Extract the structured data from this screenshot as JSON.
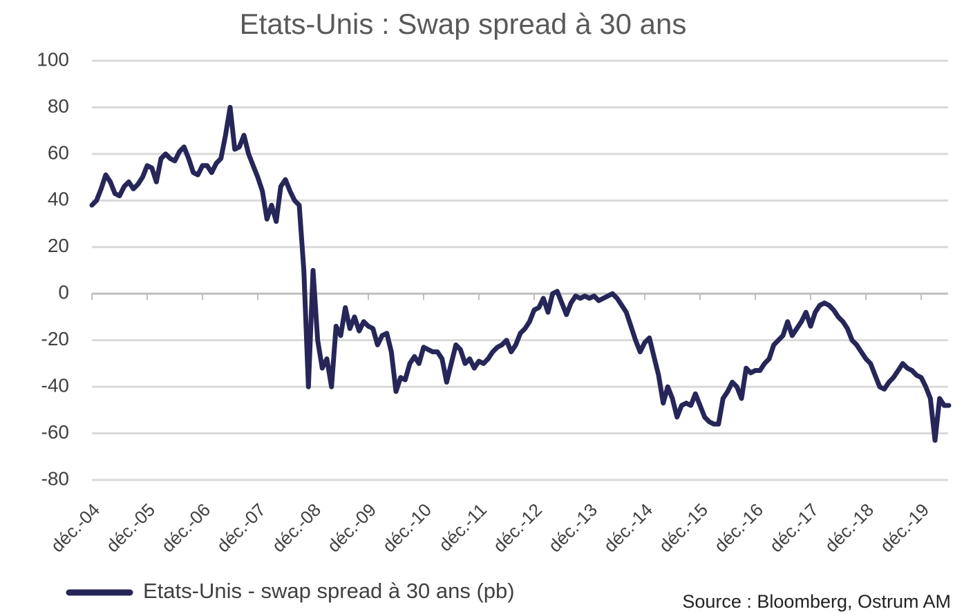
{
  "chart_data": {
    "type": "line",
    "title": "Etats-Unis : Swap spread à 30 ans",
    "source": "Source : Bloomberg, Ostrum AM",
    "categories": [
      "déc.-04",
      null,
      null,
      null,
      null,
      null,
      null,
      null,
      null,
      null,
      null,
      null,
      "déc.-05",
      null,
      null,
      null,
      null,
      null,
      null,
      null,
      null,
      null,
      null,
      null,
      "déc.-06",
      null,
      null,
      null,
      null,
      null,
      null,
      null,
      null,
      null,
      null,
      null,
      "déc.-07",
      null,
      null,
      null,
      null,
      null,
      null,
      null,
      null,
      null,
      null,
      null,
      "déc.-08",
      null,
      null,
      null,
      null,
      null,
      null,
      null,
      null,
      null,
      null,
      null,
      "déc.-09",
      null,
      null,
      null,
      null,
      null,
      null,
      null,
      null,
      null,
      null,
      null,
      "déc.-10",
      null,
      null,
      null,
      null,
      null,
      null,
      null,
      null,
      null,
      null,
      null,
      "déc.-11",
      null,
      null,
      null,
      null,
      null,
      null,
      null,
      null,
      null,
      null,
      null,
      "déc.-12",
      null,
      null,
      null,
      null,
      null,
      null,
      null,
      null,
      null,
      null,
      null,
      "déc.-13",
      null,
      null,
      null,
      null,
      null,
      null,
      null,
      null,
      null,
      null,
      null,
      "déc.-14",
      null,
      null,
      null,
      null,
      null,
      null,
      null,
      null,
      null,
      null,
      null,
      "déc.-15",
      null,
      null,
      null,
      null,
      null,
      null,
      null,
      null,
      null,
      null,
      null,
      "déc.-16",
      null,
      null,
      null,
      null,
      null,
      null,
      null,
      null,
      null,
      null,
      null,
      "déc.-17",
      null,
      null,
      null,
      null,
      null,
      null,
      null,
      null,
      null,
      null,
      null,
      "déc.-18",
      null,
      null,
      null,
      null,
      null,
      null,
      null,
      null,
      null,
      null,
      null,
      "déc.-19",
      null,
      null,
      null,
      null,
      null,
      null
    ],
    "series": [
      {
        "name": "Etats-Unis - swap spread à 30 ans (pb)",
        "color": "#262659",
        "values": [
          38,
          40,
          45,
          51,
          48,
          43,
          42,
          46,
          48,
          45,
          47,
          50,
          55,
          54,
          48,
          58,
          60,
          58,
          57,
          61,
          63,
          58,
          52,
          51,
          55,
          55,
          52,
          56,
          58,
          68,
          80,
          62,
          63,
          68,
          60,
          55,
          50,
          44,
          32,
          38,
          31,
          46,
          49,
          44,
          40,
          38,
          10,
          -40,
          10,
          -20,
          -32,
          -28,
          -40,
          -14,
          -18,
          -6,
          -15,
          -10,
          -16,
          -12,
          -14,
          -15,
          -22,
          -18,
          -17,
          -25,
          -42,
          -36,
          -37,
          -30,
          -27,
          -30,
          -23,
          -24,
          -25,
          -25,
          -28,
          -38,
          -30,
          -22,
          -24,
          -30,
          -28,
          -32,
          -29,
          -30,
          -28,
          -25,
          -23,
          -22,
          -20,
          -25,
          -22,
          -17,
          -15,
          -12,
          -7,
          -6,
          -2,
          -8,
          0,
          1,
          -4,
          -9,
          -4,
          -1,
          -2,
          -1,
          -2,
          -1,
          -3,
          -2,
          -1,
          0,
          -2,
          -5,
          -8,
          -14,
          -20,
          -25,
          -21,
          -19,
          -27,
          -35,
          -47,
          -40,
          -45,
          -53,
          -48,
          -47,
          -48,
          -43,
          -48,
          -53,
          -55,
          -56,
          -56,
          -45,
          -42,
          -38,
          -40,
          -45,
          -32,
          -34,
          -33,
          -33,
          -30,
          -28,
          -22,
          -20,
          -18,
          -12,
          -18,
          -15,
          -12,
          -8,
          -14,
          -8,
          -5,
          -4,
          -5,
          -7,
          -10,
          -12,
          -15,
          -20,
          -22,
          -25,
          -28,
          -30,
          -35,
          -40,
          -41,
          -38,
          -36,
          -33,
          -30,
          -32,
          -33,
          -35,
          -36,
          -40,
          -45,
          -63,
          -45,
          -48,
          -48
        ]
      }
    ],
    "ylim": [
      -80,
      100
    ],
    "yticks": [
      -80,
      -60,
      -40,
      -20,
      0,
      20,
      40,
      60,
      80,
      100
    ],
    "grid": true
  }
}
